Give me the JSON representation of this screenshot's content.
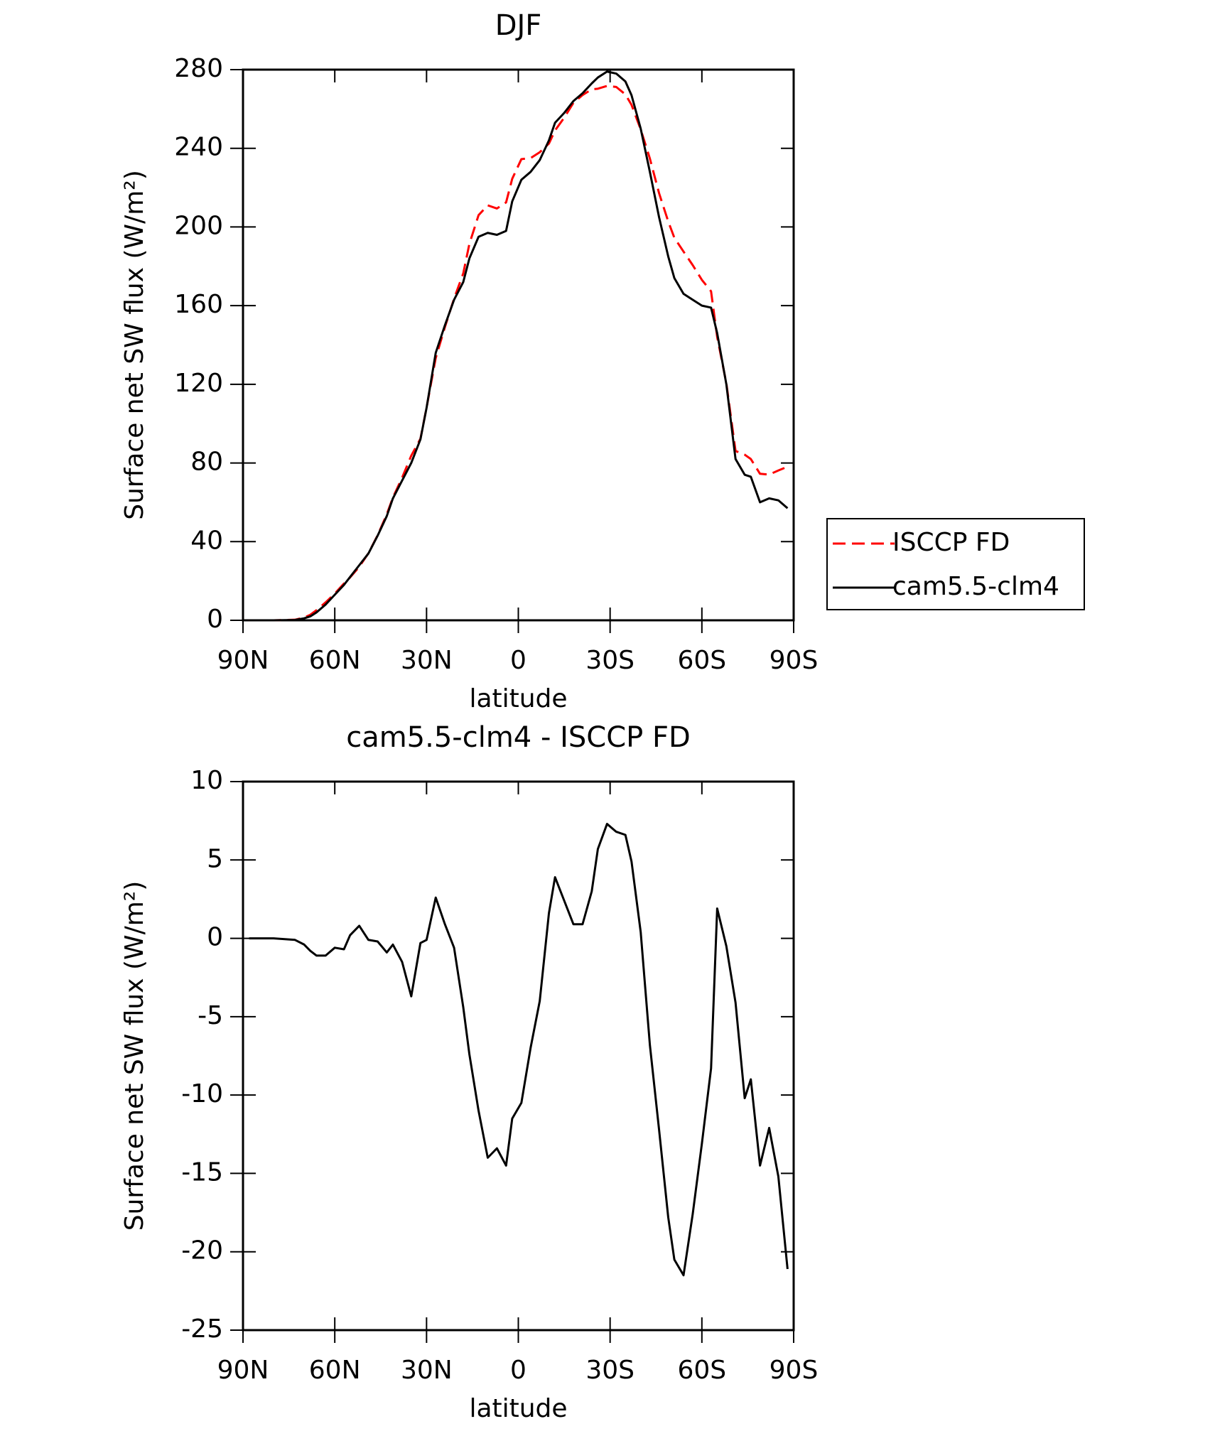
{
  "chart_data": [
    {
      "type": "line",
      "title": "DJF",
      "xlabel": "latitude",
      "ylabel": "Surface net SW flux (W/m²)",
      "x": [
        88,
        80,
        73,
        70,
        68,
        66,
        63,
        60,
        57,
        55,
        52,
        49,
        46,
        43,
        41,
        38,
        35,
        32,
        30,
        27,
        24,
        21,
        18,
        16,
        13,
        10,
        7,
        4,
        2,
        -1,
        -4,
        -7,
        -10,
        -12,
        -15,
        -18,
        -21,
        -24,
        -26,
        -29,
        -32,
        -35,
        -37,
        -40,
        -43,
        -46,
        -49,
        -51,
        -54,
        -57,
        -60,
        -63,
        -65,
        -68,
        -71,
        -74,
        -76,
        -79,
        -82,
        -85,
        -88
      ],
      "series": [
        {
          "name": "ISCCP FD",
          "color": "#ff0000",
          "dash": true,
          "values": [
            0,
            0,
            0.3,
            1.4,
            2.8,
            5.1,
            9.1,
            13.6,
            18.7,
            21.8,
            27.2,
            34.1,
            43.2,
            53.9,
            62.4,
            72.5,
            83.7,
            92.3,
            108.1,
            133.4,
            149.1,
            163.6,
            176.4,
            191.4,
            206,
            211,
            209.4,
            212.5,
            224.5,
            234.5,
            235,
            238,
            242.4,
            249.1,
            255.6,
            263.1,
            267.1,
            270,
            270.3,
            271.7,
            271.2,
            267.4,
            262.1,
            249.6,
            234.8,
            217.2,
            202.8,
            194.5,
            187.5,
            180.6,
            173.1,
            167.3,
            144.1,
            120.5,
            86.1,
            84.2,
            82,
            74.5,
            74.1,
            76.2,
            78.1
          ]
        },
        {
          "name": "cam5.5-clm4",
          "color": "#000000",
          "dash": false,
          "values": [
            0,
            0,
            0.2,
            1,
            2,
            4,
            8,
            13,
            18,
            22,
            28,
            34,
            43,
            53,
            62,
            71,
            80,
            92,
            108,
            136,
            150,
            163,
            172,
            184,
            195,
            197,
            196,
            198,
            213,
            224,
            228,
            234,
            244,
            253,
            258,
            264,
            268,
            273,
            276,
            279,
            278,
            274,
            267,
            250,
            228,
            205,
            185,
            174,
            166,
            163,
            160,
            159,
            146,
            120,
            82,
            74,
            73,
            60,
            62,
            61,
            57
          ]
        }
      ],
      "xlim": [
        90,
        -90
      ],
      "xticks": [
        {
          "value": 90,
          "label": "90N"
        },
        {
          "value": 60,
          "label": "60N"
        },
        {
          "value": 30,
          "label": "30N"
        },
        0,
        {
          "value": -30,
          "label": "30S"
        },
        {
          "value": -60,
          "label": "60S"
        },
        {
          "value": -90,
          "label": "90S"
        }
      ],
      "ylim": [
        0,
        280
      ],
      "yticks": [
        0,
        40,
        80,
        120,
        160,
        200,
        240,
        280
      ],
      "legend": "right"
    },
    {
      "type": "line",
      "title": "cam5.5-clm4 - ISCCP FD",
      "xlabel": "latitude",
      "ylabel": "Surface net SW flux (W/m²)",
      "x": [
        88,
        80,
        73,
        70,
        68,
        66,
        63,
        60,
        57,
        55,
        52,
        49,
        46,
        43,
        41,
        38,
        35,
        32,
        30,
        27,
        24,
        21,
        18,
        16,
        13,
        10,
        7,
        4,
        2,
        -1,
        -4,
        -7,
        -10,
        -12,
        -15,
        -18,
        -21,
        -24,
        -26,
        -29,
        -32,
        -35,
        -37,
        -40,
        -43,
        -46,
        -49,
        -51,
        -54,
        -57,
        -60,
        -63,
        -65,
        -68,
        -71,
        -74,
        -76,
        -79,
        -82,
        -85,
        -88
      ],
      "series": [
        {
          "color": "#000000",
          "dash": false,
          "values": [
            0,
            0,
            -0.1,
            -0.4,
            -0.8,
            -1.1,
            -1.1,
            -0.6,
            -0.7,
            0.2,
            0.8,
            -0.1,
            -0.2,
            -0.9,
            -0.4,
            -1.5,
            -3.7,
            -0.3,
            -0.1,
            2.6,
            0.9,
            -0.6,
            -4.4,
            -7.4,
            -11,
            -14,
            -13.4,
            -14.5,
            -11.5,
            -10.5,
            -7,
            -4,
            1.6,
            3.9,
            2.4,
            0.9,
            0.9,
            3,
            5.7,
            7.3,
            6.8,
            6.6,
            4.9,
            0.4,
            -6.8,
            -12.2,
            -17.8,
            -20.5,
            -21.5,
            -17.6,
            -13.1,
            -8.3,
            1.9,
            -0.5,
            -4.1,
            -10.2,
            -9,
            -14.5,
            -12.1,
            -15.2,
            -21.1
          ]
        }
      ],
      "xlim": [
        90,
        -90
      ],
      "xticks": [
        {
          "value": 90,
          "label": "90N"
        },
        {
          "value": 60,
          "label": "60N"
        },
        {
          "value": 30,
          "label": "30N"
        },
        0,
        {
          "value": -30,
          "label": "30S"
        },
        {
          "value": -60,
          "label": "60S"
        },
        {
          "value": -90,
          "label": "90S"
        }
      ],
      "ylim": [
        -25,
        10
      ],
      "yticks": [
        -25,
        -20,
        -15,
        -10,
        -5,
        0,
        5,
        10
      ]
    }
  ]
}
